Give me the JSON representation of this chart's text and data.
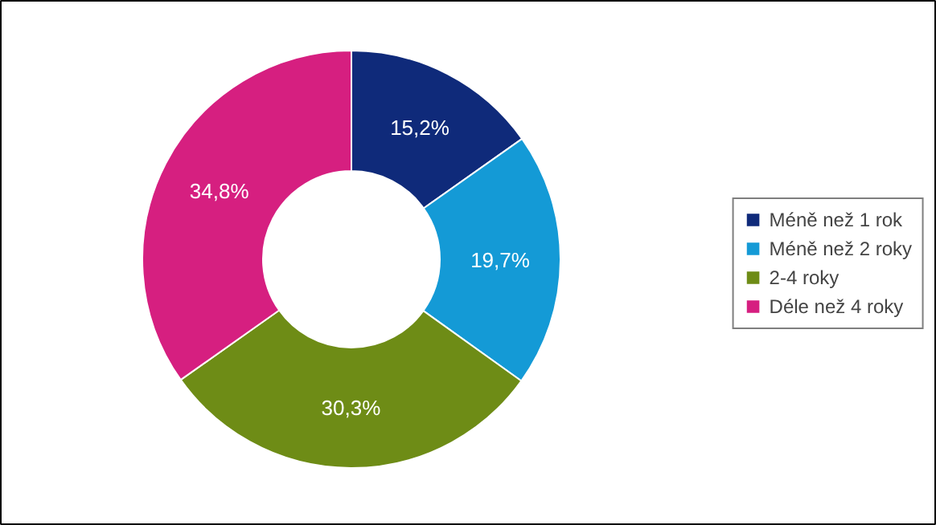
{
  "chart_data": {
    "type": "donut",
    "categories": [
      "Méně než 1 rok",
      "Méně než 2 roky",
      "2-4 roky",
      "Déle než 4 roky"
    ],
    "values": [
      15.2,
      19.7,
      30.3,
      34.8
    ],
    "colors": [
      "#0f2a7a",
      "#149ad6",
      "#6e8c16",
      "#d61f80"
    ],
    "value_labels": [
      "15,2%",
      "19,7%",
      "30,3%",
      "34,8%"
    ],
    "legend": "right"
  }
}
